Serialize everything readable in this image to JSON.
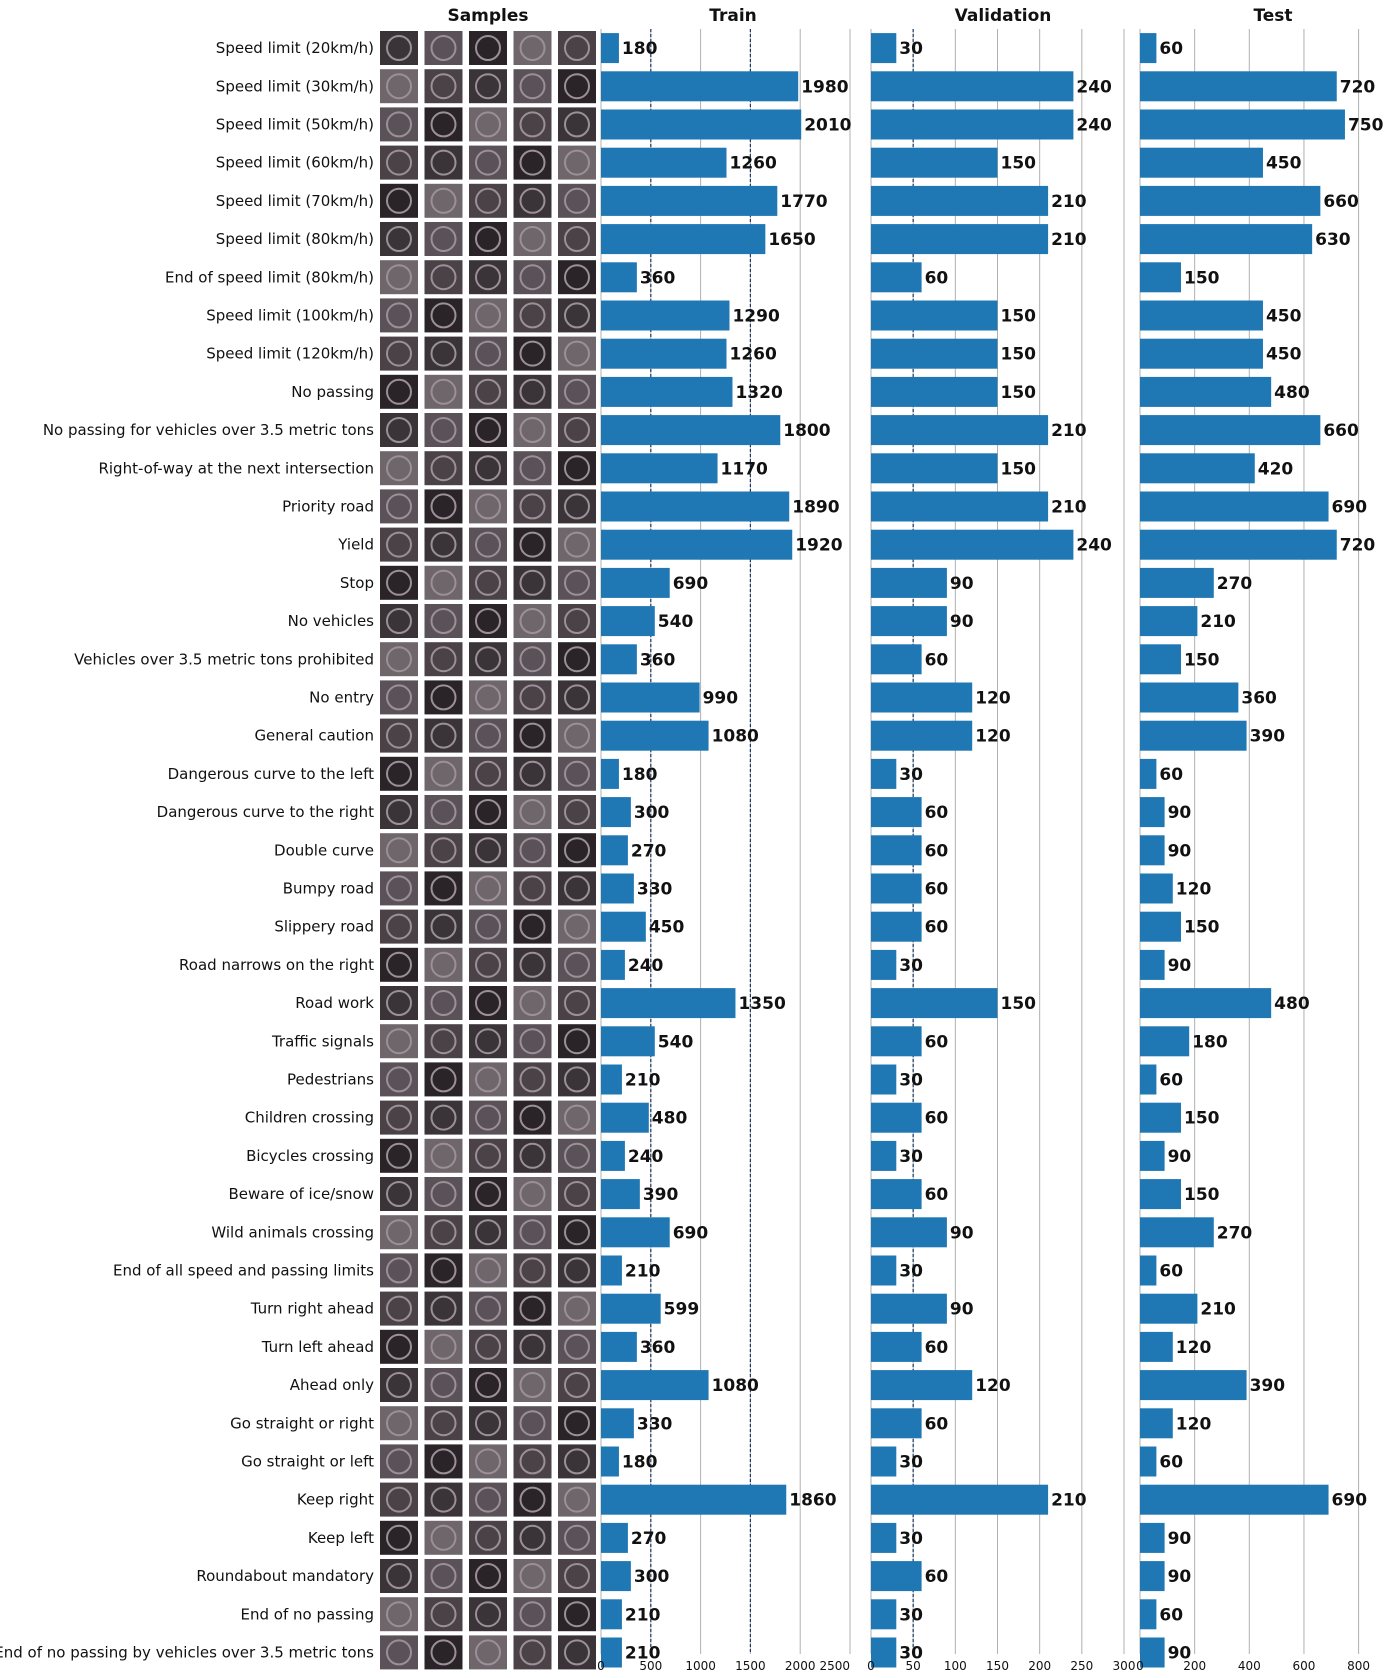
{
  "headers": {
    "samples": "Samples",
    "train": "Train",
    "validation": "Validation",
    "test": "Test"
  },
  "colors": {
    "bar": "#1f77b4",
    "grid": "#b0b0b0",
    "tick_text": "#111111",
    "value_text": "#111111"
  },
  "chart_data": [
    {
      "type": "bar",
      "orientation": "horizontal",
      "title": "Train",
      "xlim": [
        0,
        2500
      ],
      "ticks": [
        0,
        500,
        1000,
        1500,
        2000,
        2500
      ],
      "tick_labels": [
        "0",
        "500",
        "1000",
        "1500",
        "2000",
        "2500"
      ],
      "grid": true,
      "vlines": [
        500,
        1500
      ],
      "categories": [
        "Speed limit (20km/h)",
        "Speed limit (30km/h)",
        "Speed limit (50km/h)",
        "Speed limit (60km/h)",
        "Speed limit (70km/h)",
        "Speed limit (80km/h)",
        "End of speed limit (80km/h)",
        "Speed limit (100km/h)",
        "Speed limit (120km/h)",
        "No passing",
        "No passing for vehicles over 3.5 metric tons",
        "Right-of-way at the next intersection",
        "Priority road",
        "Yield",
        "Stop",
        "No vehicles",
        "Vehicles over 3.5 metric tons prohibited",
        "No entry",
        "General caution",
        "Dangerous curve to the left",
        "Dangerous curve to the right",
        "Double curve",
        "Bumpy road",
        "Slippery road",
        "Road narrows on the right",
        "Road work",
        "Traffic signals",
        "Pedestrians",
        "Children crossing",
        "Bicycles crossing",
        "Beware of ice/snow",
        "Wild animals crossing",
        "End of all speed and passing limits",
        "Turn right ahead",
        "Turn left ahead",
        "Ahead only",
        "Go straight or right",
        "Go straight or left",
        "Keep right",
        "Keep left",
        "Roundabout mandatory",
        "End of no passing",
        "End of no passing by vehicles over 3.5 metric tons"
      ],
      "values": [
        180,
        1980,
        2010,
        1260,
        1770,
        1650,
        360,
        1290,
        1260,
        1320,
        1800,
        1170,
        1890,
        1920,
        690,
        540,
        360,
        990,
        1080,
        180,
        300,
        270,
        330,
        450,
        240,
        1350,
        540,
        210,
        480,
        240,
        390,
        690,
        210,
        599,
        360,
        1080,
        330,
        180,
        1860,
        270,
        300,
        210,
        210
      ],
      "value_labels": [
        "180",
        "1980",
        "2010",
        "1260",
        "1770",
        "1650",
        "360",
        "1290",
        "1260",
        "1320",
        "1800",
        "1170",
        "1890",
        "1920",
        "690",
        "540",
        "360",
        "990",
        "1080",
        "180",
        "300",
        "270",
        "330",
        "450",
        "240",
        "1350",
        "540",
        "210",
        "480",
        "240",
        "390",
        "690",
        "210",
        "599",
        "360",
        "1080",
        "330",
        "180",
        "1860",
        "270",
        "300",
        "210",
        "210"
      ]
    },
    {
      "type": "bar",
      "orientation": "horizontal",
      "title": "Validation",
      "xlim": [
        0,
        300
      ],
      "ticks": [
        0,
        50,
        100,
        150,
        200,
        250,
        300
      ],
      "tick_labels": [
        "0",
        "50",
        "100",
        "150",
        "200",
        "250",
        "300"
      ],
      "grid": true,
      "vlines": [
        50
      ],
      "categories": [
        "Speed limit (20km/h)",
        "Speed limit (30km/h)",
        "Speed limit (50km/h)",
        "Speed limit (60km/h)",
        "Speed limit (70km/h)",
        "Speed limit (80km/h)",
        "End of speed limit (80km/h)",
        "Speed limit (100km/h)",
        "Speed limit (120km/h)",
        "No passing",
        "No passing for vehicles over 3.5 metric tons",
        "Right-of-way at the next intersection",
        "Priority road",
        "Yield",
        "Stop",
        "No vehicles",
        "Vehicles over 3.5 metric tons prohibited",
        "No entry",
        "General caution",
        "Dangerous curve to the left",
        "Dangerous curve to the right",
        "Double curve",
        "Bumpy road",
        "Slippery road",
        "Road narrows on the right",
        "Road work",
        "Traffic signals",
        "Pedestrians",
        "Children crossing",
        "Bicycles crossing",
        "Beware of ice/snow",
        "Wild animals crossing",
        "End of all speed and passing limits",
        "Turn right ahead",
        "Turn left ahead",
        "Ahead only",
        "Go straight or right",
        "Go straight or left",
        "Keep right",
        "Keep left",
        "Roundabout mandatory",
        "End of no passing",
        "End of no passing by vehicles over 3.5 metric tons"
      ],
      "values": [
        30,
        240,
        240,
        150,
        210,
        210,
        60,
        150,
        150,
        150,
        210,
        150,
        210,
        240,
        90,
        90,
        60,
        120,
        120,
        30,
        60,
        60,
        60,
        60,
        30,
        150,
        60,
        30,
        60,
        30,
        60,
        90,
        30,
        90,
        60,
        120,
        60,
        30,
        210,
        30,
        60,
        30,
        30
      ],
      "value_labels": [
        "30",
        "240",
        "240",
        "150",
        "210",
        "210",
        "60",
        "150",
        "150",
        "150",
        "210",
        "150",
        "210",
        "240",
        "90",
        "90",
        "60",
        "120",
        "120",
        "30",
        "60",
        "60",
        "60",
        "60",
        "30",
        "150",
        "60",
        "30",
        "60",
        "30",
        "60",
        "90",
        "30",
        "90",
        "60",
        "120",
        "60",
        "30",
        "210",
        "30",
        "60",
        "30",
        "30"
      ]
    },
    {
      "type": "bar",
      "orientation": "horizontal",
      "title": "Test",
      "xlim": [
        0,
        860
      ],
      "ticks": [
        0,
        200,
        400,
        600,
        800
      ],
      "tick_labels": [
        "0",
        "200",
        "400",
        "600",
        "800"
      ],
      "grid": true,
      "vlines": [],
      "categories": [
        "Speed limit (20km/h)",
        "Speed limit (30km/h)",
        "Speed limit (50km/h)",
        "Speed limit (60km/h)",
        "Speed limit (70km/h)",
        "Speed limit (80km/h)",
        "End of speed limit (80km/h)",
        "Speed limit (100km/h)",
        "Speed limit (120km/h)",
        "No passing",
        "No passing for vehicles over 3.5 metric tons",
        "Right-of-way at the next intersection",
        "Priority road",
        "Yield",
        "Stop",
        "No vehicles",
        "Vehicles over 3.5 metric tons prohibited",
        "No entry",
        "General caution",
        "Dangerous curve to the left",
        "Dangerous curve to the right",
        "Double curve",
        "Bumpy road",
        "Slippery road",
        "Road narrows on the right",
        "Road work",
        "Traffic signals",
        "Pedestrians",
        "Children crossing",
        "Bicycles crossing",
        "Beware of ice/snow",
        "Wild animals crossing",
        "End of all speed and passing limits",
        "Turn right ahead",
        "Turn left ahead",
        "Ahead only",
        "Go straight or right",
        "Go straight or left",
        "Keep right",
        "Keep left",
        "Roundabout mandatory",
        "End of no passing",
        "End of no passing by vehicles over 3.5 metric tons"
      ],
      "values": [
        60,
        720,
        750,
        450,
        660,
        630,
        150,
        450,
        450,
        480,
        660,
        420,
        690,
        720,
        270,
        210,
        150,
        360,
        390,
        60,
        90,
        90,
        120,
        150,
        90,
        480,
        180,
        60,
        150,
        90,
        150,
        270,
        60,
        210,
        120,
        390,
        120,
        60,
        690,
        90,
        90,
        60,
        90
      ],
      "value_labels": [
        "60",
        "720",
        "750",
        "450",
        "660",
        "630",
        "150",
        "450",
        "450",
        "480",
        "660",
        "420",
        "690",
        "720",
        "270",
        "210",
        "150",
        "360",
        "390",
        "60",
        "90",
        "90",
        "120",
        "150",
        "90",
        "480",
        "180",
        "60",
        "150",
        "90",
        "150",
        "270",
        "60",
        "210",
        "120",
        "390",
        "120",
        "60",
        "690",
        "90",
        "90",
        "60",
        "90"
      ]
    }
  ]
}
